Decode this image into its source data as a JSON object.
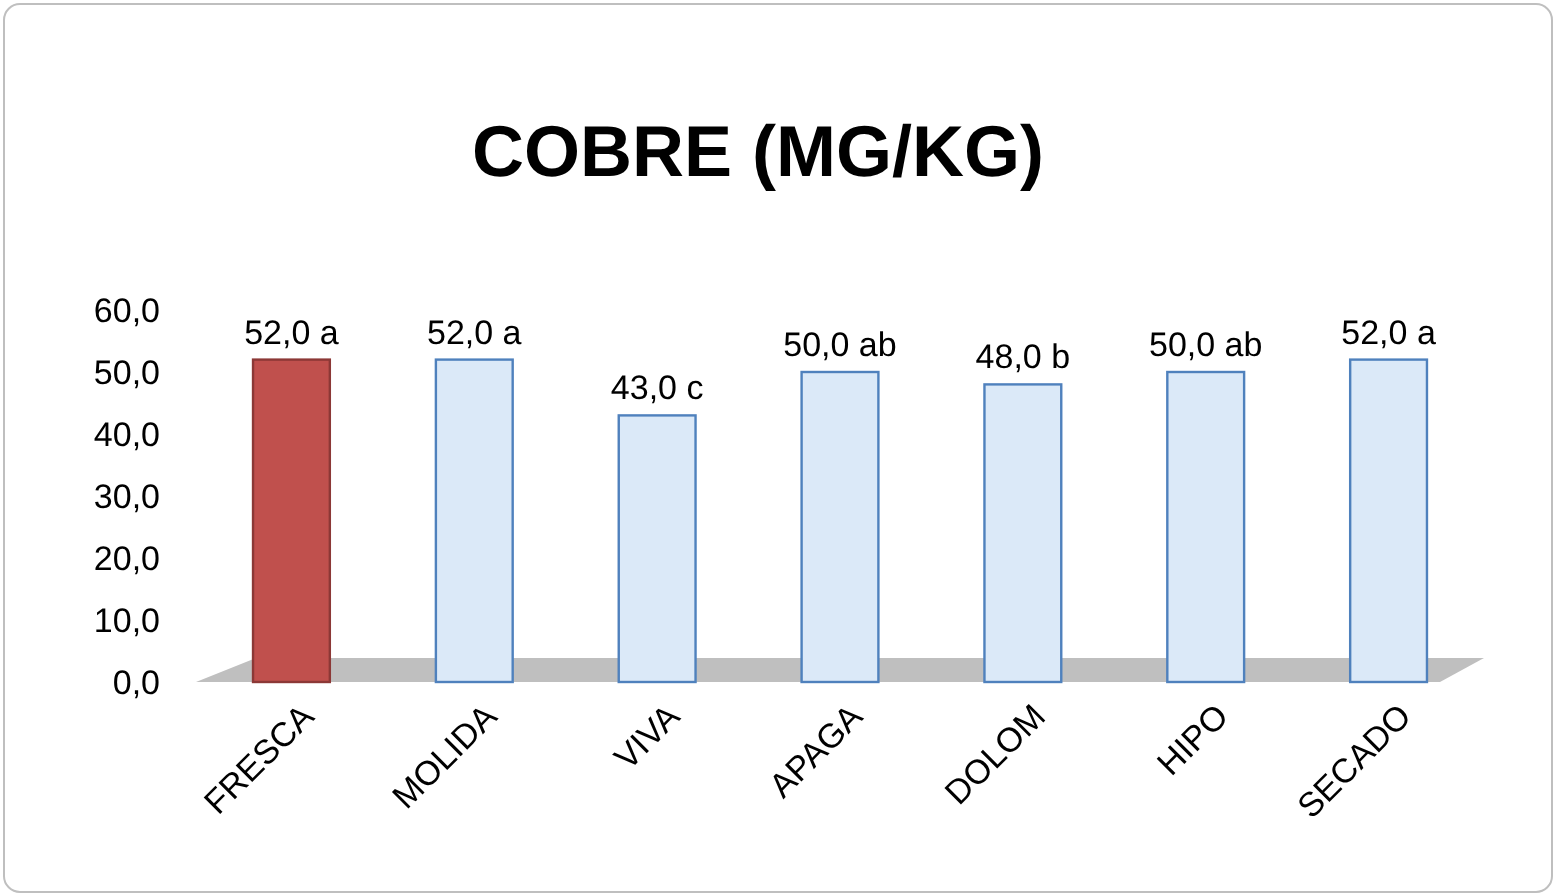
{
  "chart_data": {
    "type": "bar",
    "title": "COBRE (MG/KG)",
    "categories": [
      "FRESCA",
      "MOLIDA",
      "VIVA",
      "APAGA",
      "DOLOM",
      "HIPO",
      "SECADO"
    ],
    "values": [
      52.0,
      52.0,
      43.0,
      50.0,
      48.0,
      50.0,
      52.0
    ],
    "value_labels": [
      "52,0 a",
      "52,0 a",
      "43,0 c",
      "50,0 ab",
      "48,0 b",
      "50,0 ab",
      "52,0 a"
    ],
    "colors": [
      "#c0504d",
      "#dbe9f8",
      "#dbe9f8",
      "#dbe9f8",
      "#dbe9f8",
      "#dbe9f8",
      "#dbe9f8"
    ],
    "ylim": [
      0,
      60
    ],
    "yticks": [
      {
        "value": 0,
        "label": "0,0"
      },
      {
        "value": 10,
        "label": "10,0"
      },
      {
        "value": 20,
        "label": "20,0"
      },
      {
        "value": 30,
        "label": "30,0"
      },
      {
        "value": 40,
        "label": "40,0"
      },
      {
        "value": 50,
        "label": "50,0"
      },
      {
        "value": 60,
        "label": "60,0"
      }
    ],
    "grid": false
  }
}
